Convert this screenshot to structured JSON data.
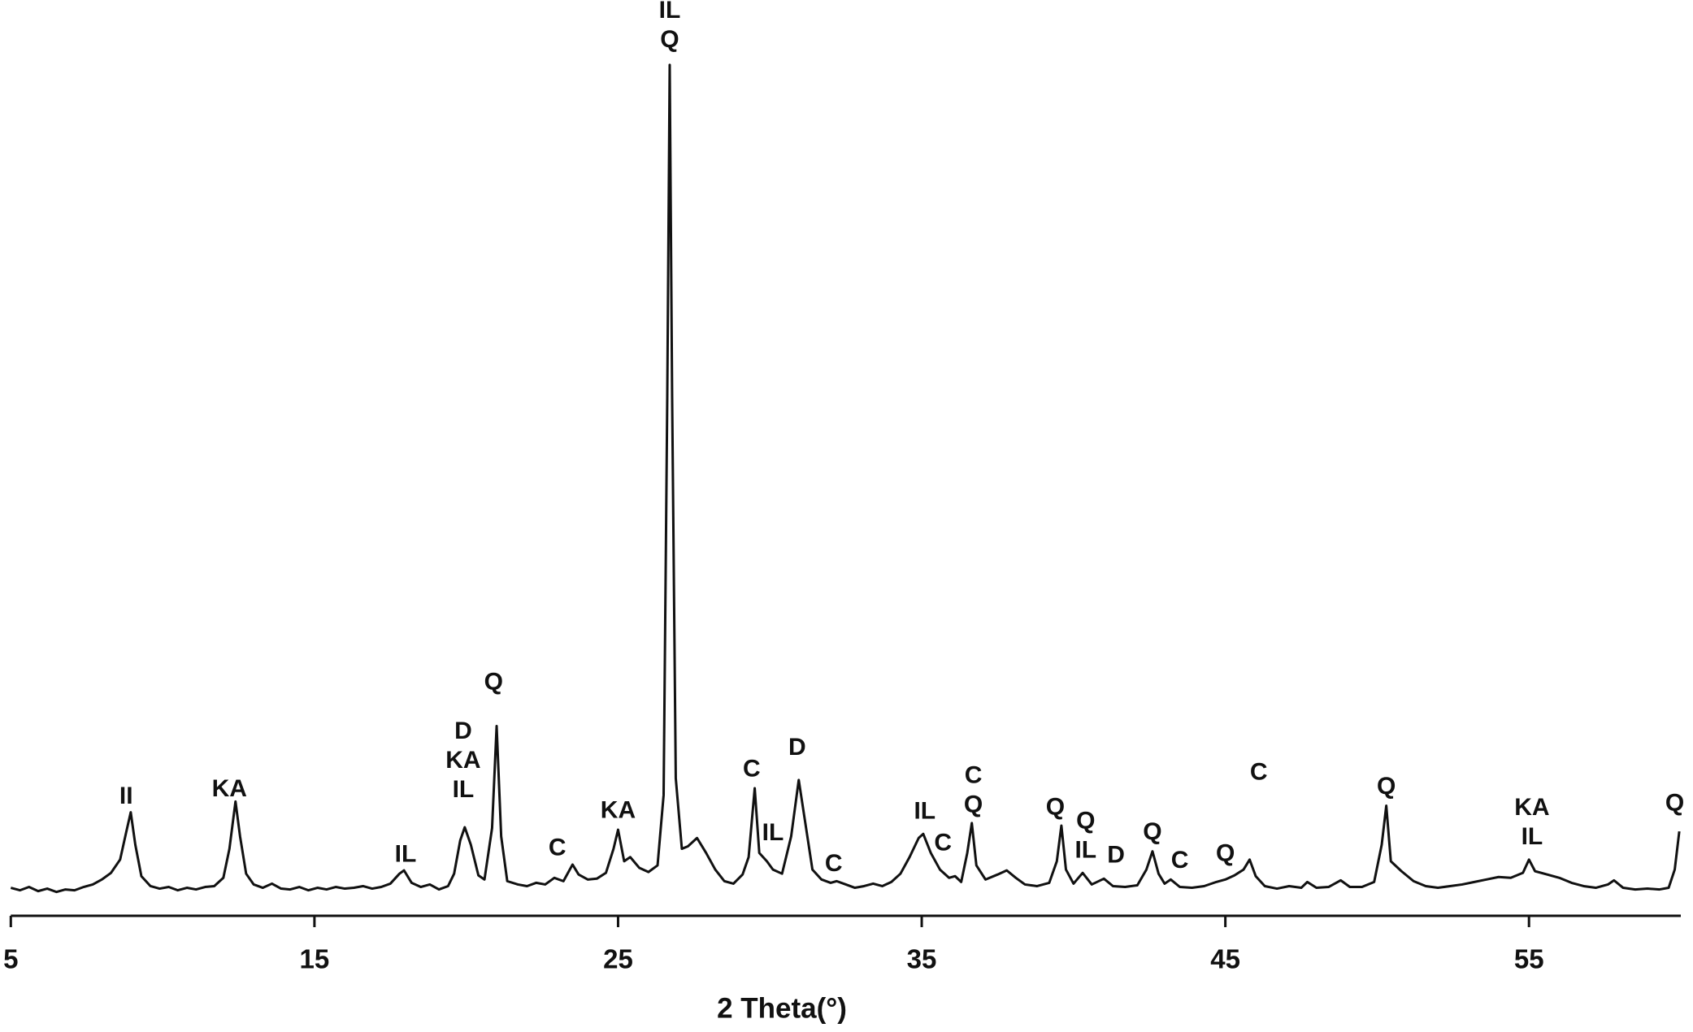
{
  "chart_data": {
    "type": "line",
    "x_label": "2 Theta(°)",
    "xlim": [
      5,
      60
    ],
    "xticks": [
      5,
      15,
      25,
      35,
      45,
      55
    ],
    "ylim": [
      0,
      108
    ],
    "series": [
      {
        "color": "#111111",
        "x": [
          5.0,
          5.3,
          5.6,
          5.9,
          6.2,
          6.5,
          6.8,
          7.1,
          7.4,
          7.7,
          8.0,
          8.3,
          8.6,
          8.8,
          8.95,
          9.1,
          9.3,
          9.6,
          9.9,
          10.2,
          10.5,
          10.8,
          11.1,
          11.4,
          11.7,
          12.0,
          12.2,
          12.4,
          12.55,
          12.75,
          13.0,
          13.3,
          13.6,
          13.9,
          14.2,
          14.5,
          14.8,
          15.1,
          15.4,
          15.7,
          16.0,
          16.3,
          16.6,
          16.9,
          17.2,
          17.5,
          17.8,
          17.95,
          18.2,
          18.5,
          18.8,
          19.1,
          19.4,
          19.6,
          19.8,
          19.95,
          20.15,
          20.4,
          20.6,
          20.85,
          21.0,
          21.15,
          21.35,
          21.7,
          22.0,
          22.3,
          22.6,
          22.9,
          23.2,
          23.5,
          23.7,
          24.0,
          24.3,
          24.6,
          24.85,
          25.0,
          25.2,
          25.4,
          25.7,
          26.0,
          26.3,
          26.5,
          26.62,
          26.7,
          26.78,
          26.9,
          27.1,
          27.3,
          27.6,
          27.9,
          28.2,
          28.5,
          28.8,
          29.1,
          29.3,
          29.5,
          29.65,
          29.9,
          30.1,
          30.4,
          30.7,
          30.95,
          31.15,
          31.4,
          31.7,
          32.0,
          32.2,
          32.5,
          32.8,
          33.1,
          33.4,
          33.7,
          34.0,
          34.3,
          34.6,
          34.9,
          35.05,
          35.3,
          35.6,
          35.9,
          36.1,
          36.3,
          36.5,
          36.65,
          36.8,
          37.1,
          37.5,
          37.8,
          38.1,
          38.4,
          38.8,
          39.2,
          39.45,
          39.6,
          39.75,
          40.0,
          40.3,
          40.6,
          41.0,
          41.3,
          41.7,
          42.1,
          42.4,
          42.6,
          42.8,
          43.0,
          43.2,
          43.5,
          43.9,
          44.3,
          44.7,
          45.0,
          45.3,
          45.6,
          45.8,
          46.0,
          46.3,
          46.7,
          47.1,
          47.5,
          47.7,
          48.0,
          48.4,
          48.8,
          49.1,
          49.5,
          49.9,
          50.15,
          50.3,
          50.45,
          50.8,
          51.2,
          51.6,
          52.0,
          52.4,
          52.8,
          53.2,
          53.6,
          54.0,
          54.4,
          54.8,
          55.0,
          55.2,
          55.6,
          56.0,
          56.4,
          56.8,
          57.2,
          57.6,
          57.8,
          58.1,
          58.5,
          58.9,
          59.3,
          59.6,
          59.8,
          59.95
        ],
        "values": [
          0.8,
          0.5,
          0.9,
          0.4,
          0.7,
          0.3,
          0.6,
          0.5,
          0.9,
          1.2,
          1.8,
          2.6,
          4.2,
          7.5,
          9.9,
          6.0,
          2.2,
          1.0,
          0.7,
          0.9,
          0.5,
          0.8,
          0.6,
          0.9,
          1.0,
          2.0,
          5.5,
          11.2,
          7.0,
          2.5,
          1.2,
          0.8,
          1.3,
          0.7,
          0.6,
          0.9,
          0.5,
          0.8,
          0.6,
          0.9,
          0.7,
          0.8,
          1.0,
          0.7,
          0.9,
          1.3,
          2.5,
          2.9,
          1.4,
          0.9,
          1.2,
          0.6,
          1.0,
          2.5,
          6.5,
          8.1,
          6.0,
          2.3,
          1.8,
          8.0,
          20.3,
          7.0,
          1.6,
          1.2,
          1.0,
          1.4,
          1.2,
          2.0,
          1.6,
          3.6,
          2.4,
          1.8,
          1.9,
          2.6,
          5.5,
          7.8,
          4.0,
          4.5,
          3.2,
          2.7,
          3.5,
          12.0,
          60,
          100,
          60,
          14,
          5.5,
          5.8,
          6.8,
          5.0,
          3.0,
          1.6,
          1.3,
          2.4,
          4.5,
          12.8,
          5.0,
          4.0,
          3.0,
          2.5,
          7.0,
          13.8,
          9.0,
          3.0,
          1.8,
          1.4,
          1.6,
          1.2,
          0.8,
          1.0,
          1.3,
          1.0,
          1.5,
          2.5,
          4.5,
          6.8,
          7.3,
          5.0,
          3.0,
          2.0,
          2.2,
          1.5,
          5.0,
          8.6,
          3.5,
          1.8,
          2.4,
          2.9,
          2.0,
          1.2,
          1.0,
          1.4,
          4.0,
          8.3,
          3.0,
          1.3,
          2.6,
          1.2,
          1.9,
          1.0,
          0.9,
          1.1,
          3.0,
          5.2,
          2.5,
          1.3,
          1.8,
          0.9,
          0.8,
          1.0,
          1.5,
          1.8,
          2.3,
          3.0,
          4.2,
          2.2,
          1.0,
          0.7,
          1.0,
          0.8,
          1.5,
          0.8,
          0.9,
          1.7,
          0.9,
          0.9,
          1.5,
          6.0,
          10.7,
          4.0,
          2.8,
          1.6,
          1.0,
          0.8,
          1.0,
          1.2,
          1.5,
          1.8,
          2.1,
          2.0,
          2.6,
          4.2,
          2.8,
          2.4,
          2.0,
          1.4,
          1.0,
          0.8,
          1.2,
          1.7,
          0.8,
          0.6,
          0.7,
          0.6,
          0.8,
          3.0,
          7.6
        ]
      }
    ],
    "annotations": [
      {
        "x": 8.8,
        "y": 11.7,
        "text": [
          "II"
        ]
      },
      {
        "x": 12.2,
        "y": 12.6,
        "text": [
          "KA"
        ]
      },
      {
        "x": 18.0,
        "y": 4.7,
        "text": [
          "IL"
        ]
      },
      {
        "x": 19.9,
        "y": 12.5,
        "text": [
          "D",
          "KA",
          "IL"
        ]
      },
      {
        "x": 20.9,
        "y": 25.5,
        "text": [
          "Q"
        ]
      },
      {
        "x": 23.0,
        "y": 5.5,
        "text": [
          "C"
        ]
      },
      {
        "x": 25.0,
        "y": 10,
        "text": [
          "KA"
        ]
      },
      {
        "x": 26.7,
        "y": 102.9,
        "text": [
          "IL",
          "Q"
        ]
      },
      {
        "x": 29.4,
        "y": 15,
        "text": [
          "C"
        ]
      },
      {
        "x": 30.1,
        "y": 7.3,
        "text": [
          "IL"
        ]
      },
      {
        "x": 30.9,
        "y": 17.6,
        "text": [
          "D"
        ]
      },
      {
        "x": 32.1,
        "y": 3.6,
        "text": [
          "C"
        ]
      },
      {
        "x": 35.1,
        "y": 9.9,
        "text": [
          "IL"
        ]
      },
      {
        "x": 35.7,
        "y": 6.1,
        "text": [
          "C"
        ]
      },
      {
        "x": 36.7,
        "y": 10.7,
        "text": [
          "C",
          "Q"
        ]
      },
      {
        "x": 39.4,
        "y": 10.4,
        "text": [
          "Q"
        ]
      },
      {
        "x": 40.4,
        "y": 5.2,
        "text": [
          "Q",
          "IL"
        ]
      },
      {
        "x": 41.4,
        "y": 4.6,
        "text": [
          "D"
        ]
      },
      {
        "x": 42.6,
        "y": 7.4,
        "text": [
          "Q"
        ]
      },
      {
        "x": 43.5,
        "y": 4,
        "text": [
          "C"
        ]
      },
      {
        "x": 45.0,
        "y": 4.8,
        "text": [
          "Q"
        ]
      },
      {
        "x": 46.1,
        "y": 14.6,
        "text": [
          "C"
        ]
      },
      {
        "x": 50.3,
        "y": 12.9,
        "text": [
          "Q"
        ]
      },
      {
        "x": 55.1,
        "y": 6.8,
        "text": [
          "KA",
          "IL"
        ]
      },
      {
        "x": 59.8,
        "y": 10.9,
        "text": [
          "Q"
        ]
      }
    ]
  }
}
